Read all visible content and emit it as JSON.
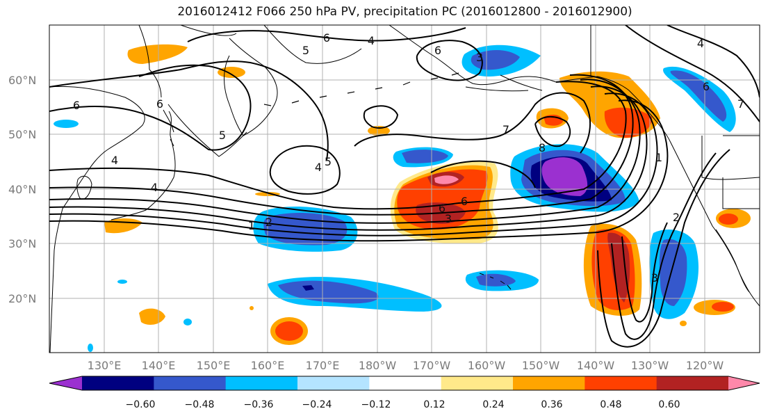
{
  "title": "2016012412 F066 250 hPa PV, precipitation PC (2016012800 - 2016012900)",
  "lat_labels": [
    "60°N",
    "50°N",
    "40°N",
    "30°N",
    "20°N"
  ],
  "lon_labels": [
    "130°E",
    "140°E",
    "150°E",
    "160°E",
    "170°E",
    "180°W",
    "170°W",
    "160°W",
    "150°W",
    "140°W",
    "130°W",
    "120°W"
  ],
  "contour_labels": [
    "6",
    "5",
    "4",
    "3",
    "6",
    "6",
    "6",
    "5",
    "4",
    "4",
    "2",
    "1",
    "5",
    "4",
    "3",
    "6",
    "7",
    "8",
    "1",
    "2",
    "3",
    "6",
    "7",
    "4",
    "6"
  ],
  "colorbar": {
    "ticks": [
      "−0.60",
      "−0.48",
      "−0.36",
      "−0.24",
      "−0.12",
      "0.12",
      "0.24",
      "0.36",
      "0.48",
      "0.60"
    ],
    "colors": [
      "#9b30d0",
      "#000080",
      "#3558cc",
      "#00bfff",
      "#b4e4ff",
      "#ffffff",
      "#ffe98a",
      "#ffa500",
      "#ff4000",
      "#b22222",
      "#ff88aa"
    ]
  }
}
